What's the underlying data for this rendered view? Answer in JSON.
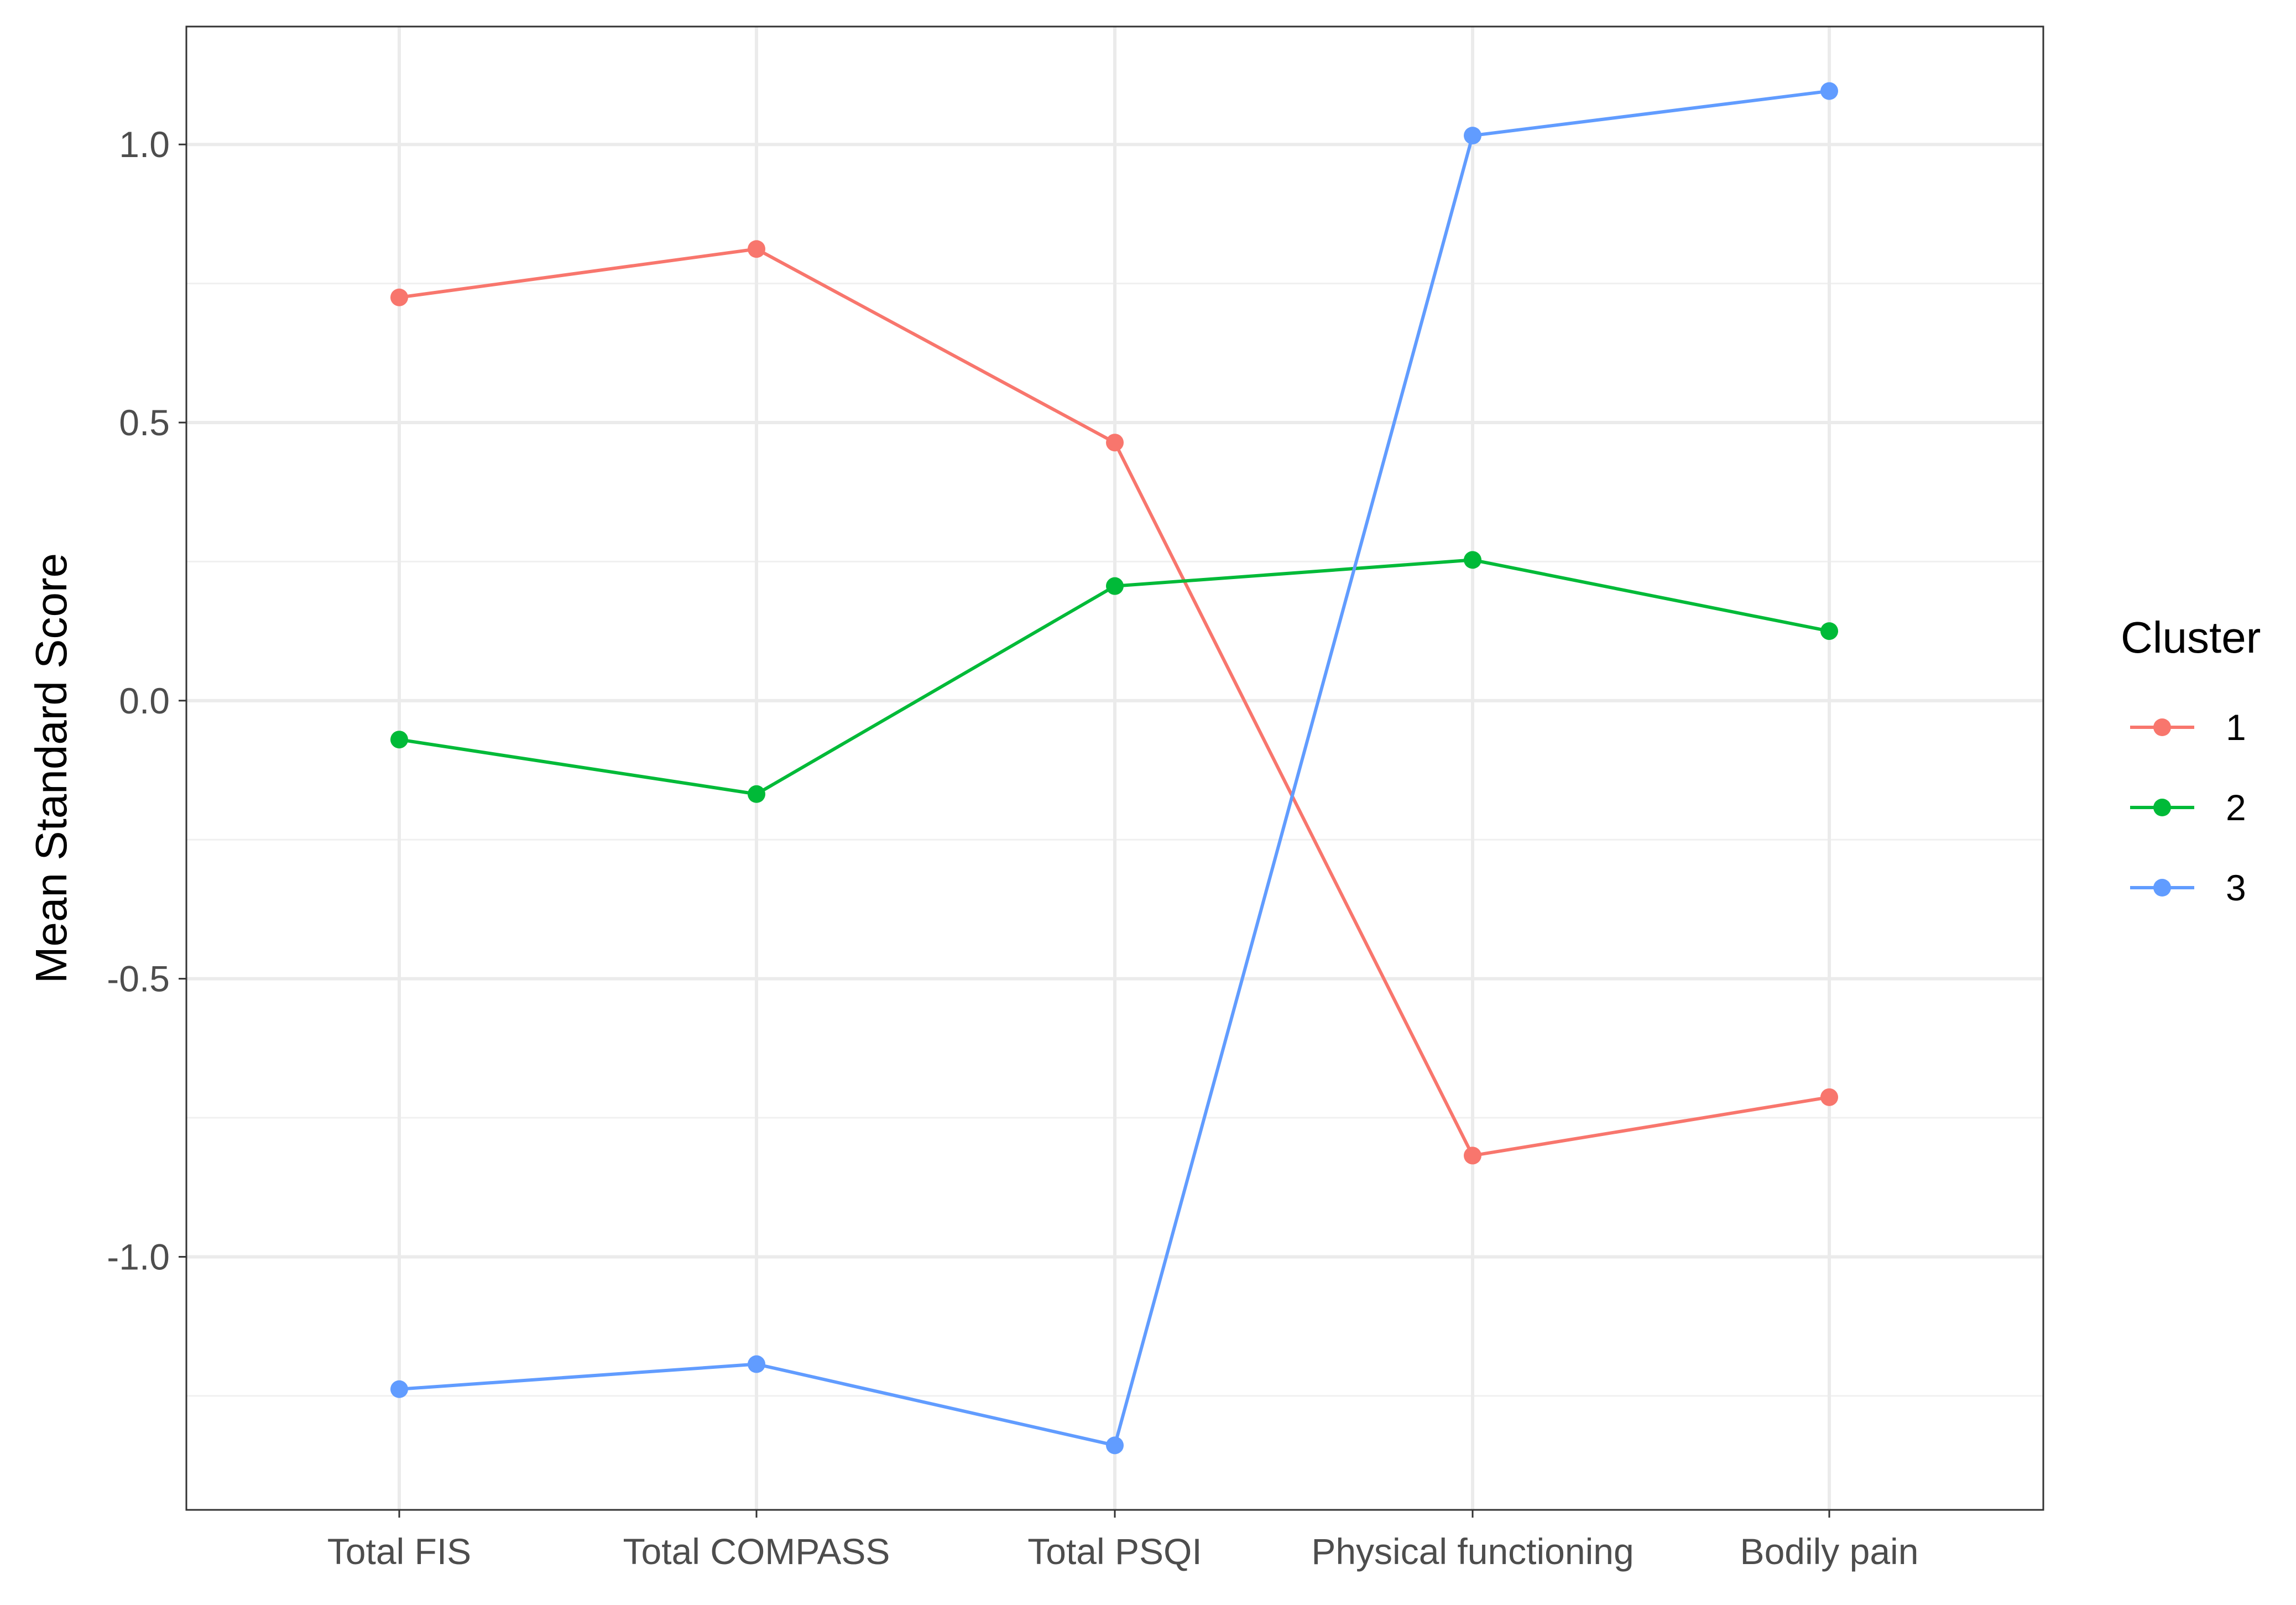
{
  "chart_data": {
    "type": "line",
    "title": "",
    "xlabel": "",
    "ylabel": "Mean Standard Score",
    "categories": [
      "Total FIS",
      "Total COMPASS",
      "Total PSQI",
      "Physical functioning",
      "Bodily pain"
    ],
    "series": [
      {
        "name": "1",
        "color": "#F8766D",
        "values": [
          0.725,
          0.812,
          0.464,
          -0.818,
          -0.713
        ]
      },
      {
        "name": "2",
        "color": "#00BA38",
        "values": [
          -0.07,
          -0.168,
          0.206,
          0.253,
          0.125
        ]
      },
      {
        "name": "3",
        "color": "#619CFF",
        "values": [
          -1.238,
          -1.193,
          -1.339,
          1.016,
          1.096
        ]
      }
    ],
    "yticks": [
      {
        "value": -1.0,
        "label": "-1.0"
      },
      {
        "value": -0.5,
        "label": "-0.5"
      },
      {
        "value": 0.0,
        "label": "0.0"
      },
      {
        "value": 0.5,
        "label": "0.5"
      },
      {
        "value": 1.0,
        "label": "1.0"
      }
    ],
    "yminor": [
      -1.25,
      -0.75,
      -0.25,
      0.25,
      0.75
    ],
    "ylim": [
      -1.455,
      1.212
    ],
    "grid": true,
    "legend": {
      "title": "Cluster",
      "position": "right"
    }
  }
}
